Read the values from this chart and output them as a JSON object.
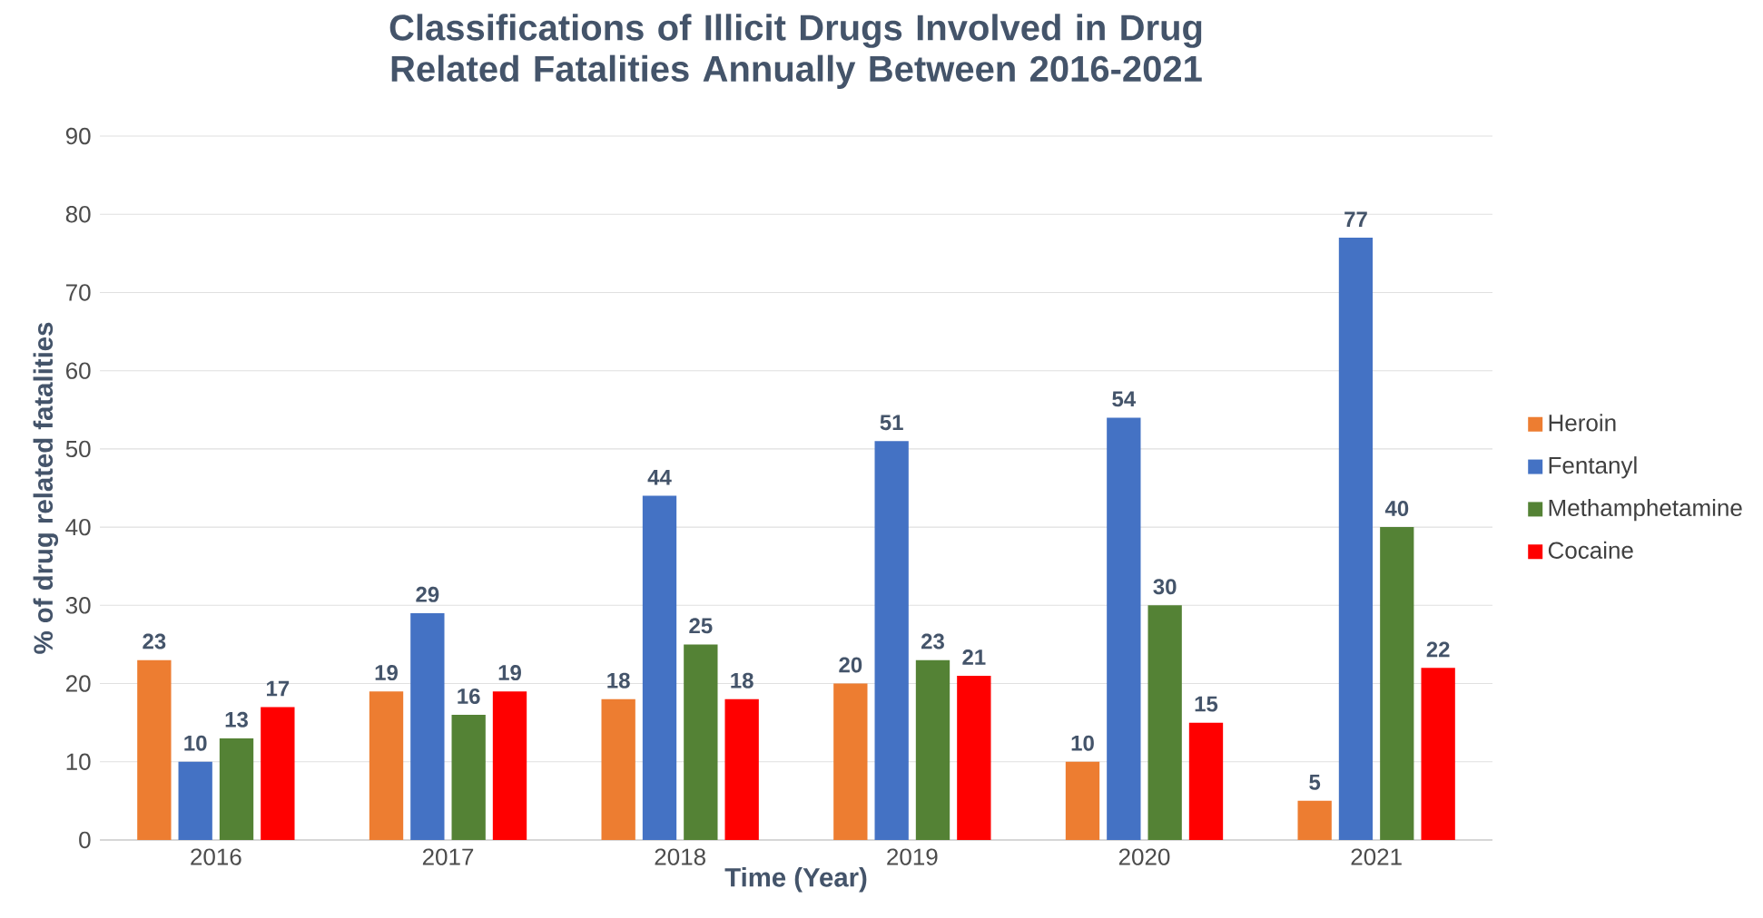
{
  "chart_data": {
    "type": "bar",
    "title": "Classifications of Illicit Drugs Involved in Drug Related Fatalities Annually Between 2016-2021",
    "xlabel": "Time (Year)",
    "ylabel": "% of drug related fatalities",
    "categories": [
      "2016",
      "2017",
      "2018",
      "2019",
      "2020",
      "2021"
    ],
    "series": [
      {
        "name": "Heroin",
        "color": "#ed7d31",
        "values": [
          23,
          19,
          18,
          20,
          10,
          5
        ]
      },
      {
        "name": "Fentanyl",
        "color": "#4472c4",
        "values": [
          10,
          29,
          44,
          51,
          54,
          77
        ]
      },
      {
        "name": "Methamphetamine",
        "color": "#548235",
        "values": [
          13,
          16,
          25,
          23,
          30,
          40
        ]
      },
      {
        "name": "Cocaine",
        "color": "#ff0000",
        "values": [
          17,
          19,
          18,
          21,
          15,
          22
        ]
      }
    ],
    "ylim": [
      0,
      90
    ],
    "yticks": [
      0,
      10,
      20,
      30,
      40,
      50,
      60,
      70,
      80,
      90
    ],
    "grid": "y",
    "legend": "right",
    "data_labels": true
  }
}
